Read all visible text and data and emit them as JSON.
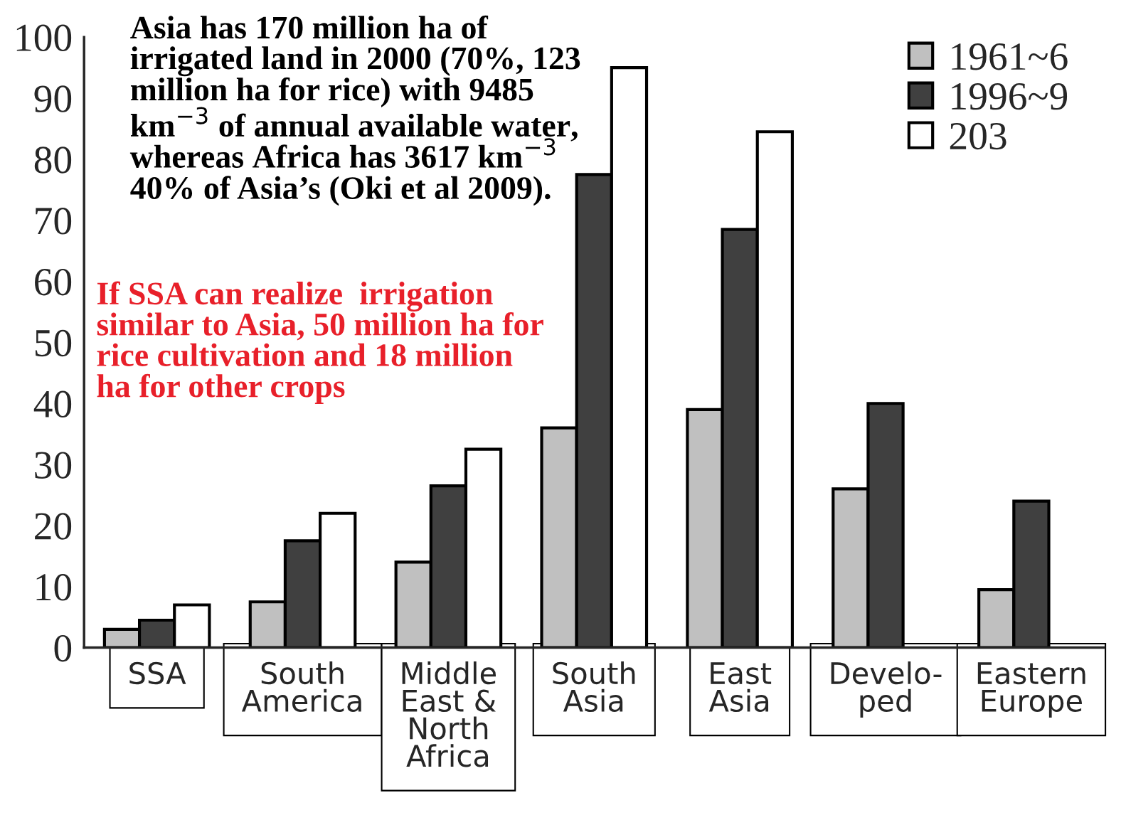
{
  "chart_data": {
    "type": "bar",
    "categories": [
      "SSA",
      "South\nAmerica",
      "Middle\nEast &\nNorth\nAfrica",
      "South\nAsia",
      "East\nAsia",
      "Develo-\nped",
      "Eastern\nEurope"
    ],
    "series": [
      {
        "name": "1961~6",
        "color": "#c0c0c0",
        "values": [
          3,
          7.5,
          14,
          36,
          39,
          26,
          9.5
        ]
      },
      {
        "name": "1996~9",
        "color": "#404040",
        "values": [
          4.5,
          17.5,
          26.5,
          77.5,
          68.5,
          40,
          24
        ]
      },
      {
        "name": "203",
        "color": "#ffffff",
        "values": [
          7,
          22,
          32.5,
          95,
          84.5,
          null,
          null
        ]
      }
    ],
    "ylim": [
      0,
      100
    ],
    "yticks": [
      0,
      10,
      20,
      30,
      40,
      50,
      60,
      70,
      80,
      90,
      100
    ],
    "grid": false,
    "legend": "top right",
    "annotations": [
      "Asia has 170 million ha of irrigated land in 2000 (70%, 123 million ha for rice) with 9485 km$^{−3}$ of annual available water, whereas Africa has 3617 km$^{−3}$ 40% of Asia’s (Oki et al 2009).",
      "If SSA can realize  irrigation similar to Asia, 50 million ha for rice cultivation and 18 million ha for other crops"
    ]
  }
}
